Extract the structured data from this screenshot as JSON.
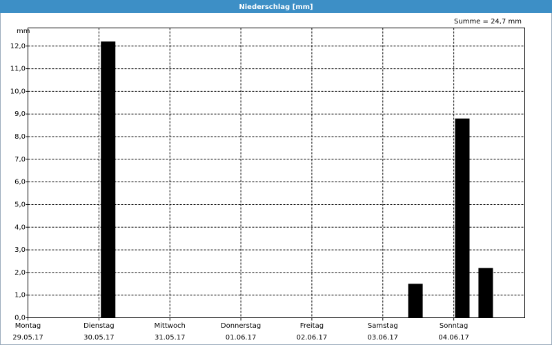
{
  "chart_data": {
    "type": "bar",
    "title": "Niederschlag [mm]",
    "annotation": "Summe = 24,7 mm",
    "y_unit": "mm",
    "x": [
      1.13,
      5.46,
      6.12,
      6.45
    ],
    "values": [
      12.2,
      1.5,
      8.8,
      2.2
    ],
    "color": "#000000",
    "xlim": [
      0,
      7
    ],
    "xticks": [
      {
        "value": 0,
        "label": "Montag",
        "date": "29.05.17"
      },
      {
        "value": 1,
        "label": "Dienstag",
        "date": "30.05.17"
      },
      {
        "value": 2,
        "label": "Mittwoch",
        "date": "31.05.17"
      },
      {
        "value": 3,
        "label": "Donnerstag",
        "date": "01.06.17"
      },
      {
        "value": 4,
        "label": "Freitag",
        "date": "02.06.17"
      },
      {
        "value": 5,
        "label": "Samstag",
        "date": "03.06.17"
      },
      {
        "value": 6,
        "label": "Sonntag",
        "date": "04.06.17"
      }
    ],
    "ylim": [
      0,
      12.8
    ],
    "yticks": [
      {
        "value": 0,
        "label": "0,0"
      },
      {
        "value": 1,
        "label": "1,0"
      },
      {
        "value": 2,
        "label": "2,0"
      },
      {
        "value": 3,
        "label": "3,0"
      },
      {
        "value": 4,
        "label": "4,0"
      },
      {
        "value": 5,
        "label": "5,0"
      },
      {
        "value": 6,
        "label": "6,0"
      },
      {
        "value": 7,
        "label": "7,0"
      },
      {
        "value": 8,
        "label": "8,0"
      },
      {
        "value": 9,
        "label": "9,0"
      },
      {
        "value": 10,
        "label": "10,0"
      },
      {
        "value": 11,
        "label": "11,0"
      },
      {
        "value": 12,
        "label": "12,0"
      }
    ],
    "grid": true
  }
}
